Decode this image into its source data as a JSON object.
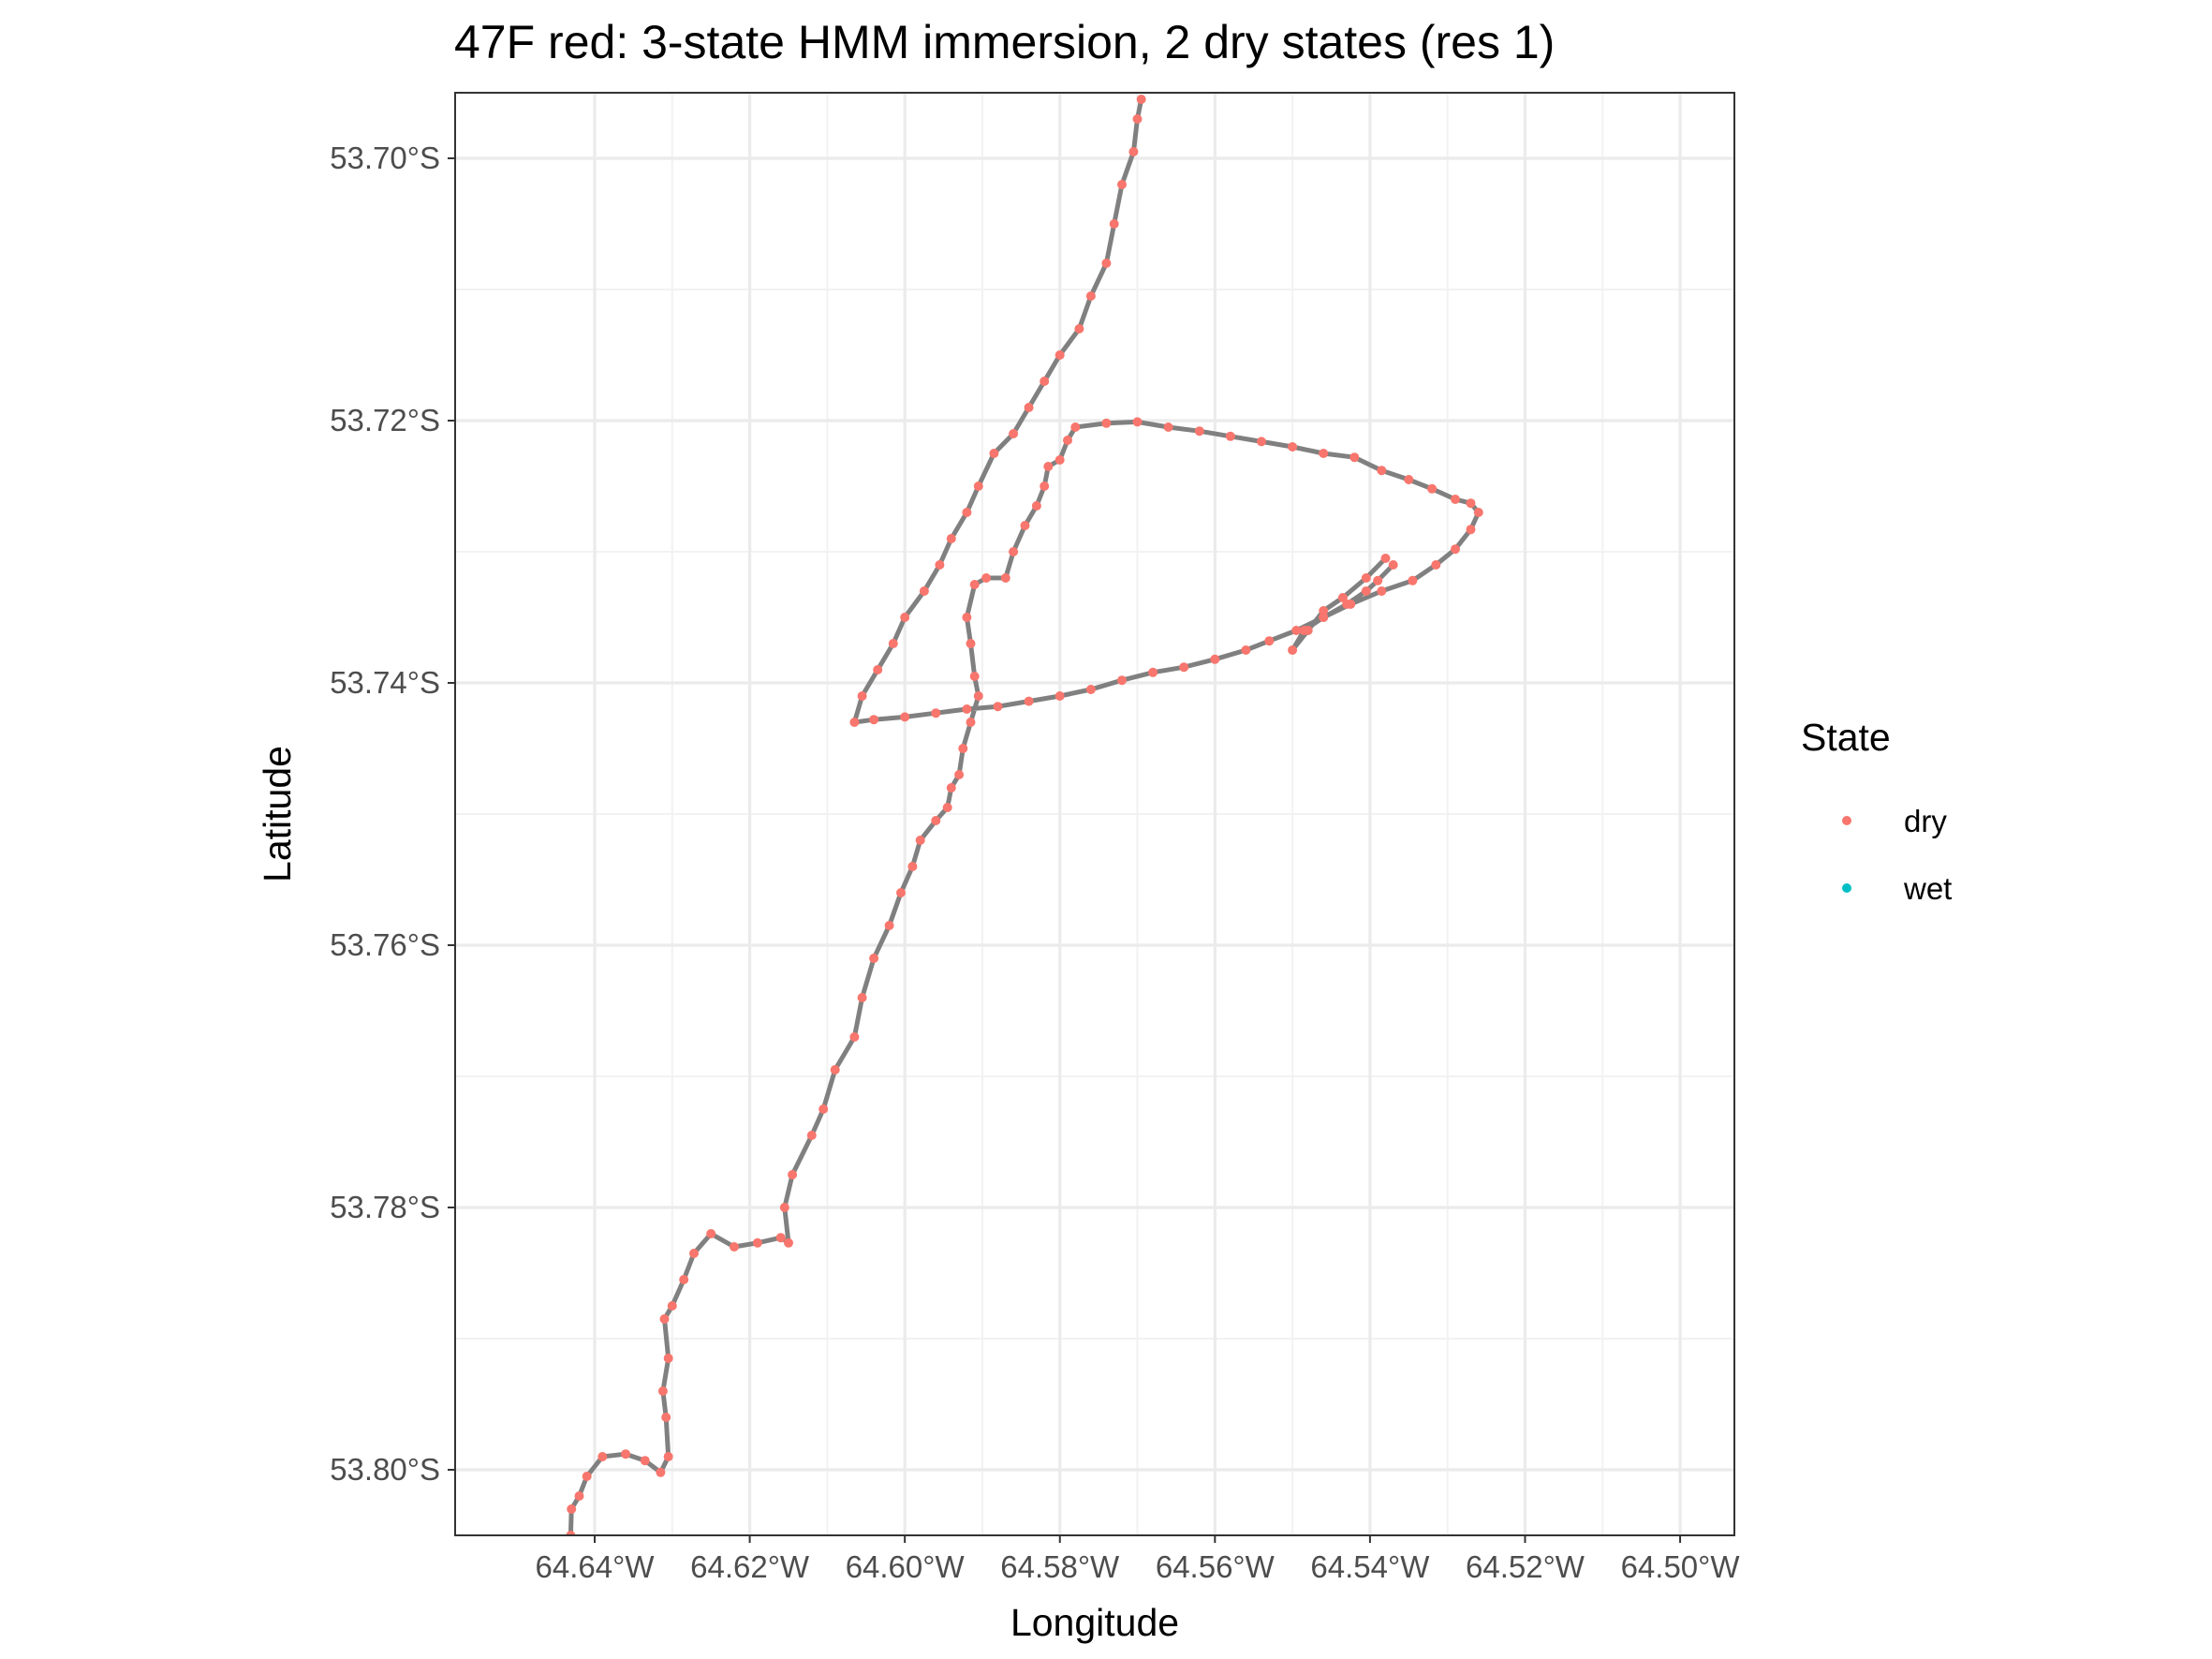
{
  "chart_data": {
    "type": "scatter",
    "title": "47F red: 3-state HMM immersion, 2 dry states (res 1)",
    "xlabel": "Longitude",
    "ylabel": "Latitude",
    "x_ticks": [
      {
        "value": -64.64,
        "label": "64.64°W"
      },
      {
        "value": -64.62,
        "label": "64.62°W"
      },
      {
        "value": -64.6,
        "label": "64.60°W"
      },
      {
        "value": -64.58,
        "label": "64.58°W"
      },
      {
        "value": -64.56,
        "label": "64.56°W"
      },
      {
        "value": -64.54,
        "label": "64.54°W"
      },
      {
        "value": -64.52,
        "label": "64.52°W"
      },
      {
        "value": -64.5,
        "label": "64.50°W"
      }
    ],
    "y_ticks": [
      {
        "value": -53.7,
        "label": "53.70°S"
      },
      {
        "value": -53.72,
        "label": "53.72°S"
      },
      {
        "value": -53.74,
        "label": "53.74°S"
      },
      {
        "value": -53.76,
        "label": "53.76°S"
      },
      {
        "value": -53.78,
        "label": "53.78°S"
      },
      {
        "value": -53.8,
        "label": "53.80°S"
      }
    ],
    "xlim": [
      -64.658,
      -64.493
    ],
    "ylim": [
      -53.805,
      -53.695
    ],
    "grid": true,
    "legend": {
      "title": "State",
      "position": "right",
      "entries": [
        {
          "label": "dry",
          "color": "#F8766D"
        },
        {
          "label": "wet",
          "color": "#00BFC4"
        }
      ]
    },
    "path_color": "#808080",
    "series": [
      {
        "name": "dry",
        "color": "#F8766D",
        "points": [
          [
            -64.6431,
            -53.805
          ],
          [
            -64.643,
            -53.803
          ],
          [
            -64.642,
            -53.802
          ],
          [
            -64.641,
            -53.8005
          ],
          [
            -64.639,
            -53.799
          ],
          [
            -64.636,
            -53.7988
          ],
          [
            -64.6335,
            -53.7993
          ],
          [
            -64.6315,
            -53.8002
          ],
          [
            -64.6305,
            -53.799
          ],
          [
            -64.6308,
            -53.796
          ],
          [
            -64.6312,
            -53.794
          ],
          [
            -64.6305,
            -53.7915
          ],
          [
            -64.631,
            -53.7885
          ],
          [
            -64.63,
            -53.7875
          ],
          [
            -64.6285,
            -53.7855
          ],
          [
            -64.6272,
            -53.7835
          ],
          [
            -64.625,
            -53.782
          ],
          [
            -64.622,
            -53.783
          ],
          [
            -64.619,
            -53.7827
          ],
          [
            -64.616,
            -53.7823
          ],
          [
            -64.615,
            -53.7827
          ],
          [
            -64.6155,
            -53.78
          ],
          [
            -64.6145,
            -53.7775
          ],
          [
            -64.612,
            -53.7745
          ],
          [
            -64.6105,
            -53.7725
          ],
          [
            -64.609,
            -53.7695
          ],
          [
            -64.6065,
            -53.767
          ],
          [
            -64.6055,
            -53.764
          ],
          [
            -64.604,
            -53.761
          ],
          [
            -64.602,
            -53.7585
          ],
          [
            -64.6005,
            -53.756
          ],
          [
            -64.599,
            -53.754
          ],
          [
            -64.598,
            -53.752
          ],
          [
            -64.596,
            -53.7505
          ],
          [
            -64.5945,
            -53.7495
          ],
          [
            -64.594,
            -53.748
          ],
          [
            -64.593,
            -53.747
          ],
          [
            -64.5925,
            -53.745
          ],
          [
            -64.5915,
            -53.743
          ],
          [
            -64.5905,
            -53.741
          ],
          [
            -64.591,
            -53.7395
          ],
          [
            -64.5915,
            -53.737
          ],
          [
            -64.592,
            -53.735
          ],
          [
            -64.591,
            -53.7325
          ],
          [
            -64.5895,
            -53.732
          ],
          [
            -64.587,
            -53.732
          ],
          [
            -64.586,
            -53.73
          ],
          [
            -64.5845,
            -53.728
          ],
          [
            -64.583,
            -53.7265
          ],
          [
            -64.582,
            -53.725
          ],
          [
            -64.5815,
            -53.7235
          ],
          [
            -64.58,
            -53.723
          ],
          [
            -64.579,
            -53.7215
          ],
          [
            -64.578,
            -53.7205
          ],
          [
            -64.574,
            -53.7202
          ],
          [
            -64.57,
            -53.7201
          ],
          [
            -64.566,
            -53.7205
          ],
          [
            -64.562,
            -53.7208
          ],
          [
            -64.558,
            -53.7212
          ],
          [
            -64.554,
            -53.7216
          ],
          [
            -64.55,
            -53.722
          ],
          [
            -64.546,
            -53.7225
          ],
          [
            -64.542,
            -53.7228
          ],
          [
            -64.5385,
            -53.7238
          ],
          [
            -64.535,
            -53.7245
          ],
          [
            -64.532,
            -53.7252
          ],
          [
            -64.529,
            -53.726
          ],
          [
            -64.527,
            -53.7263
          ],
          [
            -64.526,
            -53.727
          ],
          [
            -64.527,
            -53.7283
          ],
          [
            -64.529,
            -53.7298
          ],
          [
            -64.5315,
            -53.731
          ],
          [
            -64.5345,
            -53.7322
          ],
          [
            -64.5385,
            -53.733
          ],
          [
            -64.5425,
            -53.734
          ],
          [
            -64.546,
            -53.735
          ],
          [
            -64.5495,
            -53.736
          ],
          [
            -64.553,
            -53.7368
          ],
          [
            -64.556,
            -53.7375
          ],
          [
            -64.56,
            -53.7382
          ],
          [
            -64.564,
            -53.7388
          ],
          [
            -64.568,
            -53.7392
          ],
          [
            -64.572,
            -53.7398
          ],
          [
            -64.576,
            -53.7405
          ],
          [
            -64.58,
            -53.741
          ],
          [
            -64.584,
            -53.7414
          ],
          [
            -64.588,
            -53.7418
          ],
          [
            -64.592,
            -53.742
          ],
          [
            -64.596,
            -53.7423
          ],
          [
            -64.6,
            -53.7426
          ],
          [
            -64.604,
            -53.7428
          ],
          [
            -64.6065,
            -53.743
          ],
          [
            -64.6055,
            -53.741
          ],
          [
            -64.6035,
            -53.739
          ],
          [
            -64.6015,
            -53.737
          ],
          [
            -64.6,
            -53.735
          ],
          [
            -64.5975,
            -53.733
          ],
          [
            -64.5955,
            -53.731
          ],
          [
            -64.594,
            -53.729
          ],
          [
            -64.592,
            -53.727
          ],
          [
            -64.5905,
            -53.725
          ],
          [
            -64.5885,
            -53.7225
          ],
          [
            -64.586,
            -53.721
          ],
          [
            -64.584,
            -53.719
          ],
          [
            -64.582,
            -53.717
          ],
          [
            -64.58,
            -53.715
          ],
          [
            -64.5775,
            -53.713
          ],
          [
            -64.576,
            -53.7105
          ],
          [
            -64.574,
            -53.708
          ],
          [
            -64.573,
            -53.705
          ],
          [
            -64.572,
            -53.702
          ],
          [
            -64.5705,
            -53.6995
          ],
          [
            -64.57,
            -53.697
          ],
          [
            -64.5695,
            -53.6955
          ]
        ]
      },
      {
        "name": "dry-excursion",
        "color": "#F8766D",
        "points": [
          [
            -64.538,
            -53.7305
          ],
          [
            -64.5405,
            -53.732
          ],
          [
            -64.5435,
            -53.7335
          ],
          [
            -64.546,
            -53.7345
          ],
          [
            -64.548,
            -53.736
          ],
          [
            -64.55,
            -53.7375
          ],
          [
            -64.5485,
            -53.736
          ],
          [
            -64.546,
            -53.735
          ],
          [
            -64.543,
            -53.734
          ],
          [
            -64.5405,
            -53.733
          ],
          [
            -64.539,
            -53.7322
          ],
          [
            -64.537,
            -53.731
          ]
        ]
      },
      {
        "name": "wet",
        "color": "#00BFC4",
        "points": []
      }
    ]
  }
}
